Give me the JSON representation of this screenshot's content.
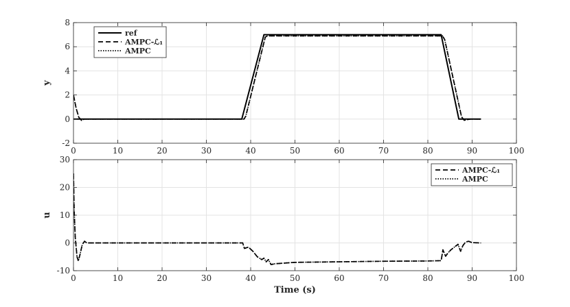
{
  "chart_data": [
    {
      "type": "line",
      "panel": "top",
      "title": "",
      "xlabel": "",
      "ylabel": "y",
      "xlim": [
        0,
        100
      ],
      "ylim": [
        -2,
        8
      ],
      "xticks": [
        0,
        10,
        20,
        30,
        40,
        50,
        60,
        70,
        80,
        90,
        100
      ],
      "yticks": [
        -2,
        0,
        2,
        4,
        6,
        8
      ],
      "grid": true,
      "legend_position": "top-left",
      "series": [
        {
          "name": "ref",
          "style": "solid",
          "x": [
            0,
            38,
            43,
            83,
            87,
            92
          ],
          "y": [
            0,
            0,
            7,
            7,
            0,
            0
          ]
        },
        {
          "name": "AMPC-ℒ₁",
          "style": "dashed",
          "x": [
            0,
            0.6,
            1.2,
            1.8,
            2.5,
            38.5,
            38.9,
            43.3,
            43.8,
            83.3,
            83.8,
            87.6,
            88.2,
            88.8,
            89.6,
            92
          ],
          "y": [
            2,
            0.9,
            0.15,
            -0.1,
            0,
            0,
            0.25,
            6.8,
            6.9,
            6.9,
            6.6,
            0.2,
            -0.1,
            -0.05,
            0,
            0
          ]
        },
        {
          "name": "AMPC",
          "style": "dotted",
          "x": [
            0,
            0.6,
            1.2,
            1.8,
            2.5,
            38.5,
            38.9,
            43.3,
            43.8,
            83.3,
            83.8,
            87.6,
            88.2,
            88.8,
            89.6,
            92
          ],
          "y": [
            2,
            0.9,
            0.15,
            -0.1,
            0,
            0,
            0.25,
            6.8,
            6.9,
            6.9,
            6.6,
            0.2,
            -0.1,
            -0.05,
            0,
            0
          ]
        }
      ]
    },
    {
      "type": "line",
      "panel": "bottom",
      "title": "",
      "xlabel": "Time (s)",
      "ylabel": "u",
      "xlim": [
        0,
        100
      ],
      "ylim": [
        -10,
        30
      ],
      "xticks": [
        0,
        10,
        20,
        30,
        40,
        50,
        60,
        70,
        80,
        90,
        100
      ],
      "yticks": [
        -10,
        0,
        10,
        20,
        30
      ],
      "grid": true,
      "legend_position": "top-right",
      "series": [
        {
          "name": "AMPC-ℒ₁",
          "style": "dashed",
          "x": [
            0,
            0.15,
            0.4,
            0.8,
            1.1,
            1.5,
            2.0,
            2.5,
            3.0,
            38.2,
            38.6,
            39.5,
            40.5,
            41.5,
            42.5,
            43.0,
            43.5,
            44.0,
            44.6,
            45.5,
            50,
            60,
            70,
            80,
            83.0,
            83.4,
            84.0,
            84.6,
            85.2,
            86.0,
            86.8,
            87.4,
            87.9,
            88.5,
            89.2,
            90,
            92
          ],
          "y": [
            25,
            12,
            2,
            -5,
            -6.5,
            -4,
            -0.5,
            0.6,
            0,
            0,
            -2,
            -1.5,
            -3,
            -5,
            -6,
            -5.5,
            -6.8,
            -6,
            -7.8,
            -7.5,
            -7,
            -6.8,
            -6.6,
            -6.5,
            -6.4,
            -2.5,
            -4.8,
            -3.5,
            -2.5,
            -1.5,
            -0.5,
            -3,
            -1,
            0.3,
            0.6,
            0.1,
            0
          ]
        },
        {
          "name": "AMPC",
          "style": "dotted",
          "x": [
            0,
            0.15,
            0.4,
            0.8,
            1.1,
            1.5,
            2.0,
            2.5,
            3.0,
            38.2,
            38.6,
            39.5,
            40.5,
            41.5,
            42.5,
            43.0,
            43.5,
            44.0,
            44.6,
            45.5,
            50,
            60,
            70,
            80,
            83.0,
            83.4,
            84.0,
            84.6,
            85.2,
            86.0,
            86.8,
            87.4,
            87.9,
            88.5,
            89.2,
            90,
            92
          ],
          "y": [
            25,
            12,
            2,
            -5,
            -6.5,
            -4,
            -0.5,
            0.6,
            0,
            0,
            -2,
            -1.5,
            -3,
            -5,
            -6,
            -5.5,
            -6.8,
            -6,
            -7.8,
            -7.5,
            -7,
            -6.8,
            -6.6,
            -6.5,
            -6.4,
            -2.5,
            -4.8,
            -3.5,
            -2.5,
            -1.5,
            -0.5,
            -3,
            -1,
            0.3,
            0.6,
            0.1,
            0
          ]
        }
      ]
    }
  ]
}
